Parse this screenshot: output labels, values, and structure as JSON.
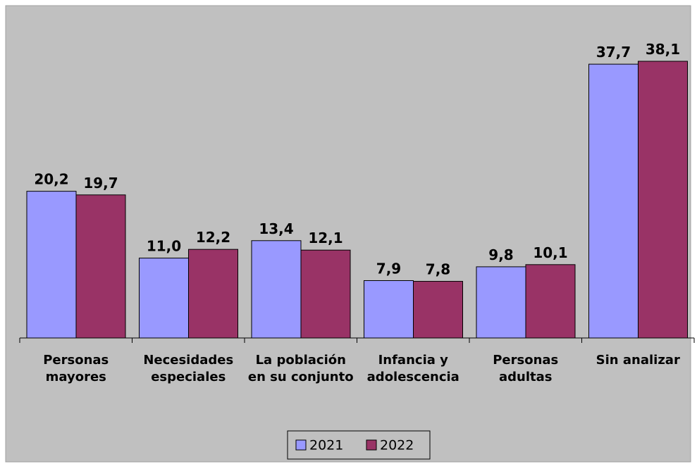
{
  "chart_data": {
    "type": "bar",
    "categories": [
      "Personas mayores",
      "Necesidades especiales",
      "La población en su conjunto",
      "Infancia y adolescencia",
      "Personas adultas",
      "Sin analizar"
    ],
    "series": [
      {
        "name": "2021",
        "color": "#9999ff",
        "values": [
          20.2,
          11.0,
          13.4,
          7.9,
          9.8,
          37.7
        ],
        "value_labels": [
          "20,2",
          "11,0",
          "13,4",
          "7,9",
          "9,8",
          "37,7"
        ]
      },
      {
        "name": "2022",
        "color": "#993366",
        "values": [
          19.7,
          12.2,
          12.1,
          7.8,
          10.1,
          38.1
        ],
        "value_labels": [
          "19,7",
          "12,2",
          "12,1",
          "7,8",
          "10,1",
          "38,1"
        ]
      }
    ],
    "legend": "bottom"
  }
}
